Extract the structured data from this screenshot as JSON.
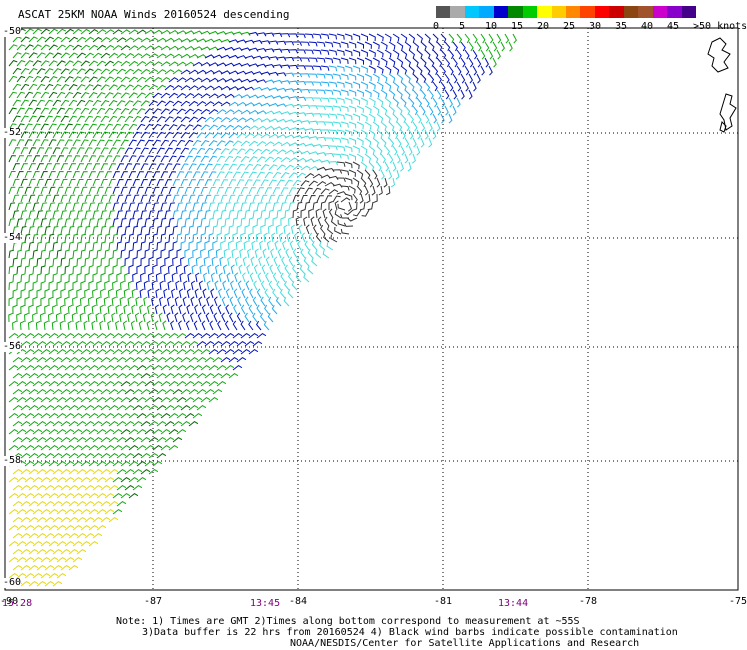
{
  "title": "ASCAT 25KM NOAA Winds 20160524 descending",
  "legend": {
    "colors": [
      "#555555",
      "#aaaaaa",
      "#00c8ff",
      "#00aaff",
      "#0000cc",
      "#008800",
      "#00cc00",
      "#ffff00",
      "#ffcc00",
      "#ff8800",
      "#ff4400",
      "#ff0000",
      "#cc0000",
      "#8b4513",
      "#a0522d",
      "#cc00cc",
      "#8800cc",
      "#440088"
    ],
    "labels": [
      "0",
      "5",
      "10",
      "15",
      "20",
      "25",
      "30",
      "35",
      "40",
      "45",
      ">50 knots"
    ]
  },
  "map": {
    "lon_ticks": [
      "-87",
      "-84",
      "-81",
      "-78",
      "-75"
    ],
    "lon_left": "-90",
    "lat_ticks": [
      "-50",
      "-52",
      "-54",
      "-56",
      "-58",
      "-60"
    ],
    "times": [
      "15:28",
      "13:45",
      "13:44"
    ],
    "wind_colors": {
      "calm": "#333333",
      "light": "#44dddd",
      "moderate": "#22aaee",
      "fresh": "#0011bb",
      "strong": "#11aa11",
      "gale": "#006600",
      "storm": "#e8d800"
    }
  },
  "notes": {
    "line1": "Note: 1) Times are GMT 2)Times along bottom correspond to measurement at ~55S",
    "line2": "3)Data buffer is 22 hrs from 20160524 4) Black wind barbs indicate possible contamination",
    "line3": "NOAA/NESDIS/Center for Satellite Applications and Research"
  }
}
